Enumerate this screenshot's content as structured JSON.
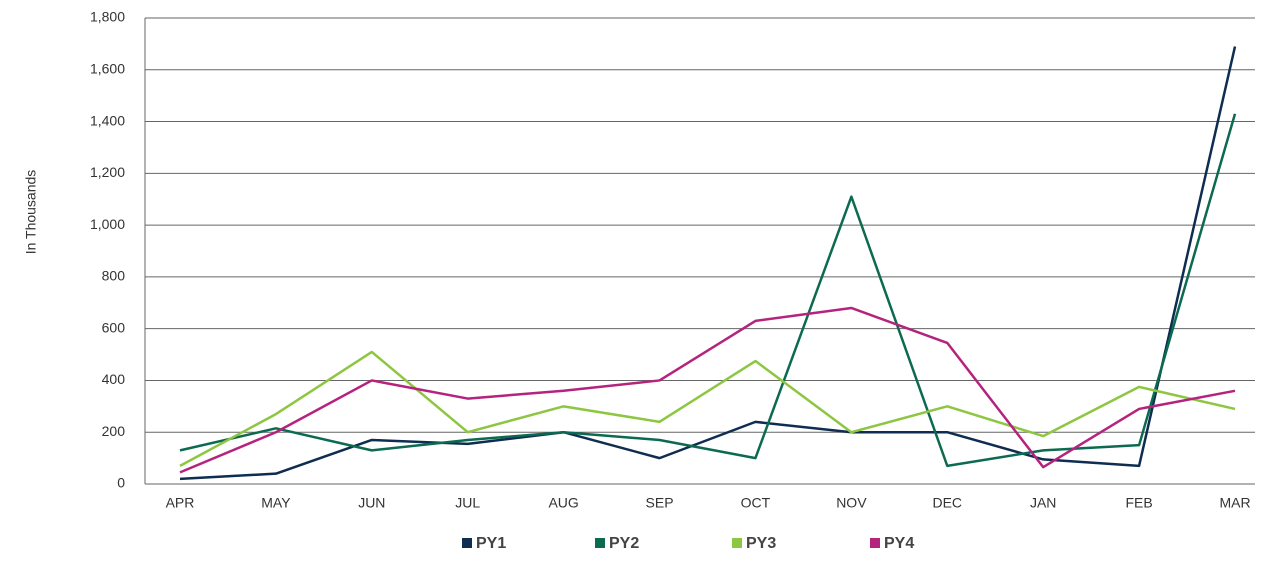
{
  "chart_data": {
    "type": "line",
    "y_label": "In Thousands",
    "categories": [
      "APR",
      "MAY",
      "JUN",
      "JUL",
      "AUG",
      "SEP",
      "OCT",
      "NOV",
      "DEC",
      "JAN",
      "FEB",
      "MAR"
    ],
    "series": [
      {
        "name": "PY1",
        "color": "#0e2d50",
        "values": [
          20,
          40,
          170,
          155,
          200,
          100,
          240,
          200,
          200,
          95,
          70,
          1690
        ]
      },
      {
        "name": "PY2",
        "color": "#0b6a4f",
        "values": [
          130,
          215,
          130,
          170,
          200,
          170,
          100,
          1110,
          70,
          130,
          150,
          1430
        ]
      },
      {
        "name": "PY3",
        "color": "#8dc641",
        "values": [
          70,
          270,
          510,
          200,
          300,
          240,
          475,
          200,
          300,
          185,
          375,
          290
        ]
      },
      {
        "name": "PY4",
        "color": "#b4237e",
        "values": [
          45,
          200,
          400,
          330,
          360,
          400,
          630,
          680,
          545,
          65,
          290,
          360
        ]
      }
    ],
    "ylim": [
      0,
      1800
    ],
    "yticks": [
      0,
      200,
      400,
      600,
      800,
      {
        "value": 1000,
        "label": "1,000"
      },
      {
        "value": 1200,
        "label": "1,200"
      },
      {
        "value": 1400,
        "label": "1,400"
      },
      {
        "value": 1600,
        "label": "1,600"
      },
      {
        "value": 1800,
        "label": "1,800"
      }
    ],
    "grid": true
  }
}
